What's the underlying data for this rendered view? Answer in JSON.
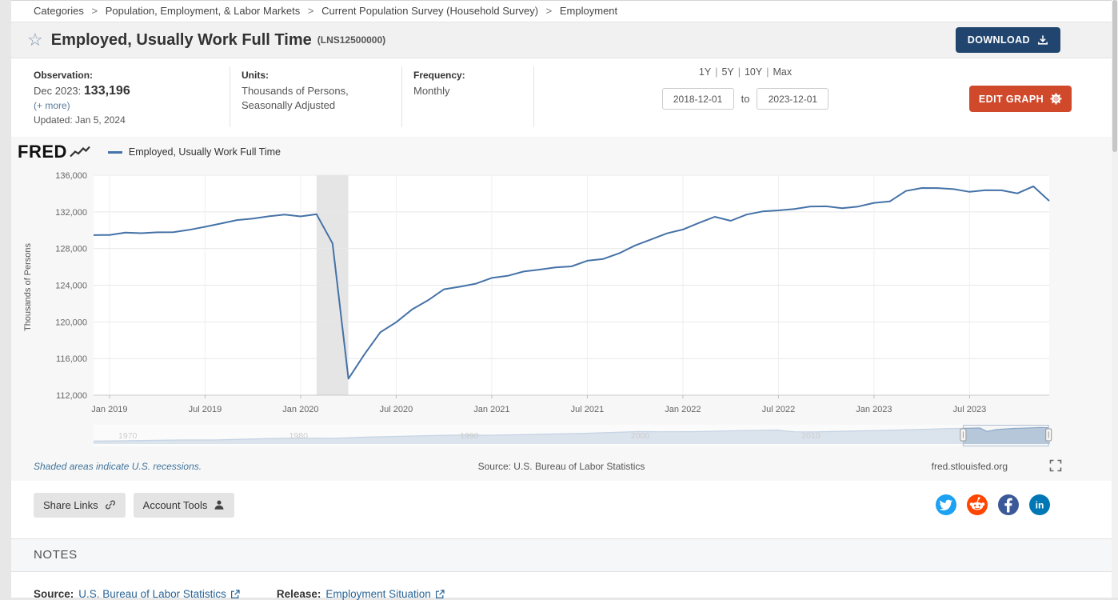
{
  "breadcrumb": {
    "separator": ">",
    "items": [
      "Categories",
      "Population, Employment, & Labor Markets",
      "Current Population Survey (Household Survey)",
      "Employment"
    ]
  },
  "header": {
    "title": "Employed, Usually Work Full Time",
    "series_id": "(LNS12500000)",
    "download_label": "DOWNLOAD"
  },
  "meta": {
    "observation_label": "Observation:",
    "observation_date": "Dec 2023:",
    "observation_value": "133,196",
    "more_link": "(+ more)",
    "updated": "Updated: Jan 5, 2024",
    "units_label": "Units:",
    "units_line1": "Thousands of Persons,",
    "units_line2": "Seasonally Adjusted",
    "frequency_label": "Frequency:",
    "frequency_value": "Monthly",
    "ranges": [
      "1Y",
      "5Y",
      "10Y",
      "Max"
    ],
    "range_separator": "|",
    "date_from": "2018-12-01",
    "to_label": "to",
    "date_to": "2023-12-01",
    "edit_graph_label": "EDIT GRAPH"
  },
  "graph": {
    "brand": "FRED",
    "legend_label": "Employed, Usually Work Full Time",
    "recession_note": "Shaded areas indicate U.S. recessions.",
    "source_note": "Source: U.S. Bureau of Labor Statistics",
    "site": "fred.stlouisfed.org"
  },
  "ui_colors": {
    "download_button": "#21456e",
    "edit_button": "#d0492b",
    "link": "#2a6496"
  },
  "chart_data": {
    "type": "line",
    "title": "Employed, Usually Work Full Time",
    "xlabel": "",
    "ylabel": "Thousands of Persons",
    "ylim": [
      112000,
      136000
    ],
    "y_ticks": [
      112000,
      116000,
      120000,
      124000,
      128000,
      132000,
      136000
    ],
    "x_ticks": [
      "Jan 2019",
      "Jul 2019",
      "Jan 2020",
      "Jul 2020",
      "Jan 2021",
      "Jul 2021",
      "Jan 2022",
      "Jul 2022",
      "Jan 2023",
      "Jul 2023"
    ],
    "grid": true,
    "legend_position": "top-left",
    "recession_span": [
      "2020-02",
      "2020-04"
    ],
    "colors": {
      "line": "#4572a7",
      "recession": "#e5e5e5"
    },
    "series": [
      {
        "name": "Employed, Usually Work Full Time",
        "x": [
          "2018-12",
          "2019-01",
          "2019-02",
          "2019-03",
          "2019-04",
          "2019-05",
          "2019-06",
          "2019-07",
          "2019-08",
          "2019-09",
          "2019-10",
          "2019-11",
          "2019-12",
          "2020-01",
          "2020-02",
          "2020-03",
          "2020-04",
          "2020-05",
          "2020-06",
          "2020-07",
          "2020-08",
          "2020-09",
          "2020-10",
          "2020-11",
          "2020-12",
          "2021-01",
          "2021-02",
          "2021-03",
          "2021-04",
          "2021-05",
          "2021-06",
          "2021-07",
          "2021-08",
          "2021-09",
          "2021-10",
          "2021-11",
          "2021-12",
          "2022-01",
          "2022-02",
          "2022-03",
          "2022-04",
          "2022-05",
          "2022-06",
          "2022-07",
          "2022-08",
          "2022-09",
          "2022-10",
          "2022-11",
          "2022-12",
          "2023-01",
          "2023-02",
          "2023-03",
          "2023-04",
          "2023-05",
          "2023-06",
          "2023-07",
          "2023-08",
          "2023-09",
          "2023-10",
          "2023-11",
          "2023-12"
        ],
        "values": [
          129466,
          129481,
          129735,
          129675,
          129772,
          129783,
          130038,
          130367,
          130733,
          131108,
          131271,
          131513,
          131710,
          131503,
          131737,
          128565,
          113800,
          116446,
          118857,
          119959,
          121353,
          122363,
          123556,
          123834,
          124162,
          124798,
          125023,
          125489,
          125702,
          125936,
          126051,
          126667,
          126864,
          127480,
          128337,
          128992,
          129658,
          130073,
          130793,
          131463,
          131025,
          131708,
          132049,
          132161,
          132318,
          132591,
          132609,
          132401,
          132577,
          132981,
          133149,
          134285,
          134602,
          134595,
          134485,
          134184,
          134366,
          134353,
          134020,
          134790,
          133196
        ]
      }
    ],
    "navigator": {
      "x_labels": [
        "1970",
        "1980",
        "1990",
        "2000",
        "2010"
      ],
      "x_start": 1968,
      "x_end": 2024,
      "ylim": [
        48000,
        136000
      ],
      "area_color": "#b7c7da",
      "line_color": "#8aa6c6",
      "window": [
        "2018-12-01",
        "2023-12-01"
      ],
      "points": [
        [
          1968,
          63000
        ],
        [
          1970,
          65200
        ],
        [
          1973,
          68800
        ],
        [
          1975,
          69000
        ],
        [
          1978,
          75800
        ],
        [
          1980,
          79300
        ],
        [
          1982,
          78300
        ],
        [
          1984,
          84200
        ],
        [
          1986,
          88100
        ],
        [
          1988,
          92600
        ],
        [
          1990,
          95600
        ],
        [
          1991,
          93600
        ],
        [
          1994,
          98700
        ],
        [
          1997,
          104700
        ],
        [
          2000,
          113400
        ],
        [
          2001,
          112100
        ],
        [
          2003,
          112600
        ],
        [
          2006,
          118600
        ],
        [
          2008,
          120900
        ],
        [
          2009,
          112200
        ],
        [
          2010,
          111200
        ],
        [
          2012,
          114900
        ],
        [
          2014,
          118800
        ],
        [
          2016,
          123300
        ],
        [
          2018,
          128700
        ],
        [
          2019.9,
          131700
        ],
        [
          2020.3,
          113800
        ],
        [
          2020.9,
          124200
        ],
        [
          2021.9,
          129700
        ],
        [
          2022.9,
          132600
        ],
        [
          2023.4,
          134600
        ],
        [
          2023.92,
          133200
        ]
      ]
    }
  },
  "share": {
    "share_links_label": "Share Links",
    "account_tools_label": "Account Tools",
    "social": [
      {
        "name": "twitter",
        "color": "#1da1f2"
      },
      {
        "name": "reddit",
        "color": "#ff4500"
      },
      {
        "name": "facebook",
        "color": "#3b5998"
      },
      {
        "name": "linkedin",
        "color": "#0077b5"
      }
    ]
  },
  "notes": {
    "heading": "NOTES",
    "source_label": "Source:",
    "source_value": "U.S. Bureau of Labor Statistics",
    "release_label": "Release:",
    "release_value": "Employment Situation"
  }
}
